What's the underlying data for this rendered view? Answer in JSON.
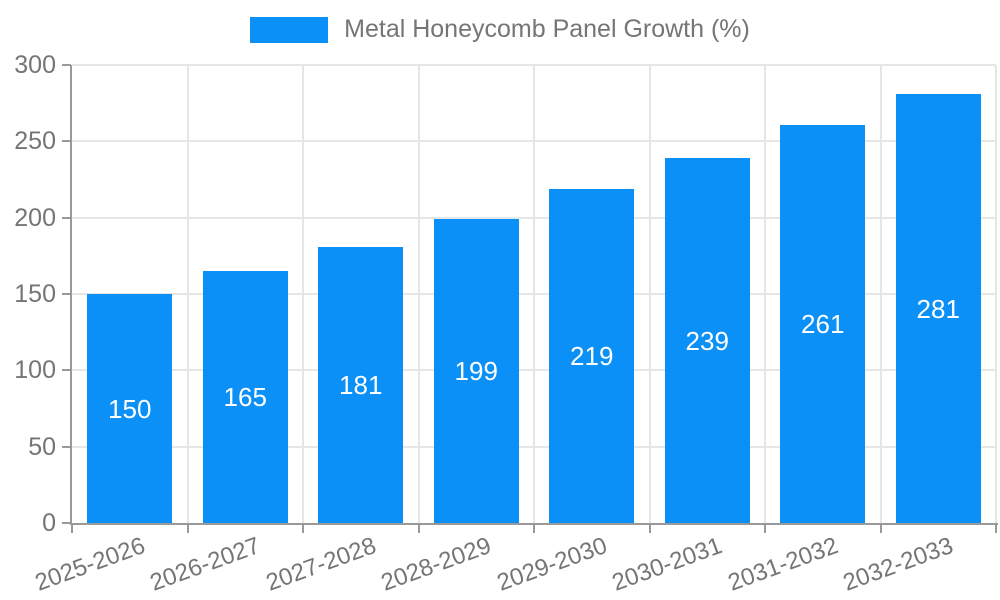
{
  "chart_data": {
    "type": "bar",
    "legend": "Metal Honeycomb Panel Growth (%)",
    "categories": [
      "2025-2026",
      "2026-2027",
      "2027-2028",
      "2028-2029",
      "2029-2030",
      "2030-2031",
      "2031-2032",
      "2032-2033"
    ],
    "values": [
      150,
      165,
      181,
      199,
      219,
      239,
      261,
      281
    ],
    "ylim": [
      0,
      300
    ],
    "yticks": [
      0,
      50,
      100,
      150,
      200,
      250,
      300
    ],
    "xlabel": "",
    "ylabel": "",
    "legend_position": "top-center",
    "grid": true,
    "bar_label_position": "center",
    "colors": {
      "bar": "#0A90F7",
      "axis": "#999999",
      "grid": "#e6e6e6",
      "tick_text": "#757575",
      "bar_label": "#ffffff",
      "background": "#ffffff"
    }
  }
}
